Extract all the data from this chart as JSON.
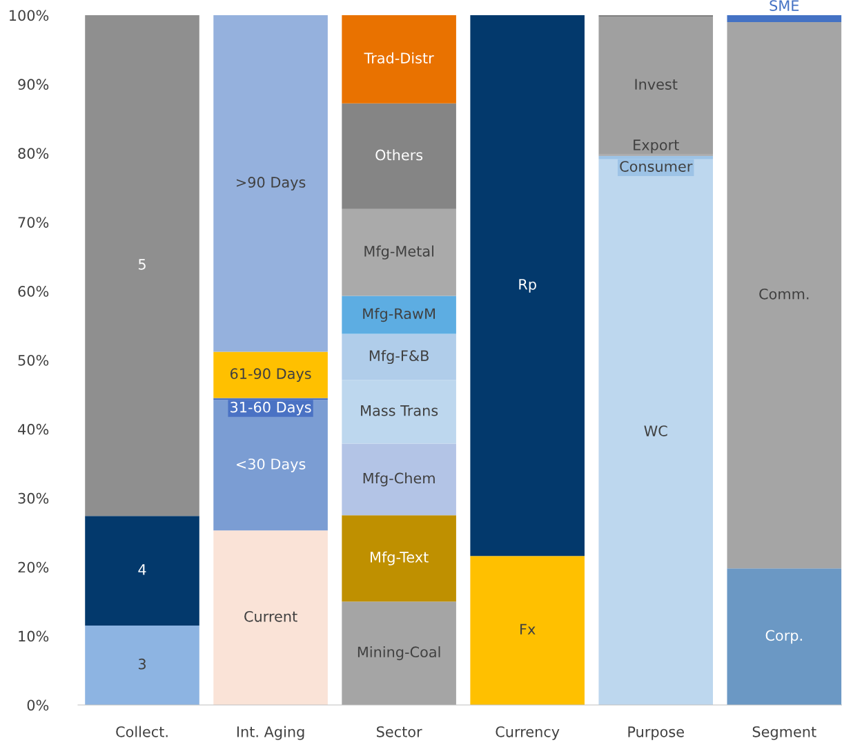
{
  "chart_data": {
    "type": "bar",
    "stacked": true,
    "data_labels": false,
    "categories": [
      "Collect.",
      "Int. Aging",
      "Sector",
      "Currency",
      "Purpose",
      "Segment"
    ],
    "ylim": [
      0,
      100
    ],
    "yticks": [
      {
        "value": 0,
        "label": "0%"
      },
      {
        "value": 10,
        "label": "10%"
      },
      {
        "value": 20,
        "label": "20%"
      },
      {
        "value": 30,
        "label": "30%"
      },
      {
        "value": 40,
        "label": "40%"
      },
      {
        "value": 50,
        "label": "50%"
      },
      {
        "value": 60,
        "label": "60%"
      },
      {
        "value": 70,
        "label": "70%"
      },
      {
        "value": 80,
        "label": "80%"
      },
      {
        "value": 90,
        "label": "90%"
      },
      {
        "value": 100,
        "label": "100%"
      }
    ],
    "grid": false,
    "legend": false,
    "series": [
      {
        "name": "3",
        "color": "#8db4e2",
        "values": [
          11.5,
          null,
          null,
          null,
          null,
          null
        ]
      },
      {
        "name": "4",
        "color": "#03396c",
        "values": [
          15.9,
          null,
          null,
          null,
          null,
          null
        ]
      },
      {
        "name": "5",
        "color": "#8f8f8f",
        "values": [
          72.6,
          null,
          null,
          null,
          null,
          null
        ]
      },
      {
        "name": "Current",
        "color": "#fae3d7",
        "values": [
          null,
          25.3,
          null,
          null,
          null,
          null
        ]
      },
      {
        "name": "<30 Days",
        "color": "#7b9dd3",
        "values": [
          null,
          18.9,
          null,
          null,
          null,
          null
        ]
      },
      {
        "name": "31-60 Days",
        "color": "#4a72c4",
        "values": [
          null,
          0.3,
          null,
          null,
          null,
          null
        ]
      },
      {
        "name": "61-90 Days",
        "color": "#ffc000",
        "values": [
          null,
          6.7,
          null,
          null,
          null,
          null
        ]
      },
      {
        "name": ">90 Days",
        "color": "#95b1dd",
        "values": [
          null,
          48.8,
          null,
          null,
          null,
          null
        ]
      },
      {
        "name": "Mining-Coal",
        "color": "#a5a5a5",
        "values": [
          null,
          null,
          15.0,
          null,
          null,
          null
        ]
      },
      {
        "name": "Mfg-Text",
        "color": "#bf9000",
        "values": [
          null,
          null,
          12.5,
          null,
          null,
          null
        ]
      },
      {
        "name": "Mfg-Chem",
        "color": "#b3c4e6",
        "values": [
          null,
          null,
          10.4,
          null,
          null,
          null
        ]
      },
      {
        "name": "Mass Trans",
        "color": "#bdd7ee",
        "values": [
          null,
          null,
          9.2,
          null,
          null,
          null
        ]
      },
      {
        "name": "Mfg-F&B",
        "color": "#b0cdea",
        "values": [
          null,
          null,
          6.7,
          null,
          null,
          null
        ]
      },
      {
        "name": "Mfg-RawM",
        "color": "#5dade2",
        "values": [
          null,
          null,
          5.5,
          null,
          null,
          null
        ]
      },
      {
        "name": "Mfg-Metal",
        "color": "#aaaaaa",
        "values": [
          null,
          null,
          12.6,
          null,
          null,
          null
        ]
      },
      {
        "name": "Others",
        "color": "#858585",
        "values": [
          null,
          null,
          15.3,
          null,
          null,
          null
        ]
      },
      {
        "name": "Trad-Distr",
        "color": "#e97200",
        "values": [
          null,
          null,
          12.8,
          null,
          null,
          null
        ]
      },
      {
        "name": "Fx",
        "color": "#ffc000",
        "values": [
          null,
          null,
          null,
          21.6,
          null,
          null
        ]
      },
      {
        "name": "Rp",
        "color": "#03396c",
        "values": [
          null,
          null,
          null,
          78.4,
          null,
          null
        ]
      },
      {
        "name": "WC",
        "color": "#bdd7ee",
        "values": [
          null,
          null,
          null,
          null,
          79.1,
          null
        ]
      },
      {
        "name": "Consumer",
        "color": "#9dc3e6",
        "values": [
          null,
          null,
          null,
          null,
          0.5,
          null
        ]
      },
      {
        "name": "Export",
        "color": "#a5a5a5",
        "values": [
          null,
          null,
          null,
          null,
          0.2,
          null
        ]
      },
      {
        "name": "Invest",
        "color": "#a0a0a0",
        "values": [
          null,
          null,
          null,
          null,
          20.0,
          null
        ]
      },
      {
        "color": "#7f7f7f",
        "values": [
          null,
          null,
          null,
          null,
          0.2,
          null
        ]
      },
      {
        "name": "Corp.",
        "color": "#6b98c4",
        "values": [
          null,
          null,
          null,
          null,
          null,
          19.8
        ]
      },
      {
        "name": "Comm.",
        "color": "#a5a5a5",
        "values": [
          null,
          null,
          null,
          null,
          null,
          79.2
        ]
      },
      {
        "name": "SME",
        "color": "#4472c4",
        "values": [
          null,
          null,
          null,
          null,
          null,
          1.0
        ]
      }
    ]
  }
}
